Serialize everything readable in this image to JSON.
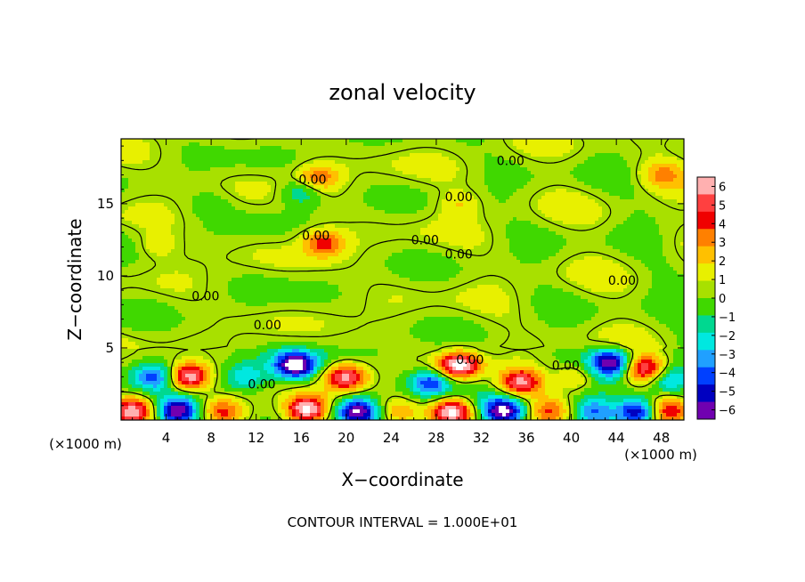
{
  "chart_data": {
    "type": "heatmap",
    "title": "zonal velocity",
    "xlabel": "X−coordinate",
    "ylabel": "Z−coordinate",
    "x_unit": "(×1000 m)",
    "y_unit": "(×1000 m)",
    "xlim": [
      0,
      50
    ],
    "ylim": [
      0,
      19.5
    ],
    "x_ticks": [
      "4",
      "8",
      "12",
      "16",
      "20",
      "24",
      "28",
      "32",
      "36",
      "40",
      "44",
      "48"
    ],
    "y_ticks": [
      "5",
      "10",
      "15"
    ],
    "colorbar": {
      "min": -6,
      "max": 6,
      "tick_labels": [
        "6",
        "5",
        "4",
        "3",
        "2",
        "1",
        "0",
        "−1",
        "−2",
        "−3",
        "−4",
        "−5",
        "−6"
      ],
      "colors": [
        "#ffb0b0",
        "#ff4040",
        "#f00000",
        "#ff8000",
        "#ffc000",
        "#e8f000",
        "#a8e000",
        "#40d800",
        "#00d890",
        "#00e8e0",
        "#20a0ff",
        "#0040ff",
        "#0000c0",
        "#7000b0"
      ]
    },
    "contour_label": "0.00",
    "contour_labels": [
      {
        "x": 34.6,
        "y": 18.0,
        "text": "0.00"
      },
      {
        "x": 17.0,
        "y": 16.7,
        "text": "0.00"
      },
      {
        "x": 30.0,
        "y": 15.5,
        "text": "0.00"
      },
      {
        "x": 17.3,
        "y": 12.8,
        "text": "0.00"
      },
      {
        "x": 27.0,
        "y": 12.5,
        "text": "0.00"
      },
      {
        "x": 30.0,
        "y": 11.5,
        "text": "0.00"
      },
      {
        "x": 44.5,
        "y": 9.7,
        "text": "0.00"
      },
      {
        "x": 7.5,
        "y": 8.6,
        "text": "0.00"
      },
      {
        "x": 13.0,
        "y": 6.6,
        "text": "0.00"
      },
      {
        "x": 31.0,
        "y": 4.2,
        "text": "0.00"
      },
      {
        "x": 39.5,
        "y": 3.8,
        "text": "0.00"
      },
      {
        "x": 12.5,
        "y": 2.5,
        "text": "0.00"
      }
    ],
    "features": [
      {
        "x": 6.0,
        "y": 3.0,
        "value": 6.5
      },
      {
        "x": 3.0,
        "y": 3.0,
        "value": -3.5
      },
      {
        "x": 15.5,
        "y": 3.8,
        "value": -6.5
      },
      {
        "x": 20.0,
        "y": 3.0,
        "value": 5.5
      },
      {
        "x": 11.0,
        "y": 3.0,
        "value": -2.5
      },
      {
        "x": 30.0,
        "y": 3.8,
        "value": 6.5
      },
      {
        "x": 27.5,
        "y": 2.6,
        "value": -4.5
      },
      {
        "x": 35.5,
        "y": 2.6,
        "value": 5.0
      },
      {
        "x": 43.5,
        "y": 4.0,
        "value": -6.0
      },
      {
        "x": 46.5,
        "y": 3.5,
        "value": 5.5
      },
      {
        "x": 48.5,
        "y": 2.8,
        "value": -3.0
      },
      {
        "x": 40.5,
        "y": 3.0,
        "value": 2.5
      },
      {
        "x": 1.0,
        "y": 0.6,
        "value": 5.0
      },
      {
        "x": 5.0,
        "y": 0.6,
        "value": -6.5
      },
      {
        "x": 9.0,
        "y": 0.6,
        "value": 3.5
      },
      {
        "x": 16.5,
        "y": 0.7,
        "value": 6.5
      },
      {
        "x": 21.0,
        "y": 0.6,
        "value": -6.0
      },
      {
        "x": 24.5,
        "y": 0.6,
        "value": 2.5
      },
      {
        "x": 29.5,
        "y": 0.6,
        "value": 6.5
      },
      {
        "x": 34.0,
        "y": 0.6,
        "value": -6.0
      },
      {
        "x": 38.0,
        "y": 0.6,
        "value": 3.0
      },
      {
        "x": 42.0,
        "y": 0.6,
        "value": -3.5
      },
      {
        "x": 46.0,
        "y": 0.6,
        "value": -6.0
      },
      {
        "x": 48.5,
        "y": 0.6,
        "value": 4.0
      },
      {
        "x": 18.0,
        "y": 12.3,
        "value": 3.5
      },
      {
        "x": 16.0,
        "y": 15.8,
        "value": -2.5
      },
      {
        "x": 17.5,
        "y": 16.8,
        "value": 3.0
      },
      {
        "x": 3.0,
        "y": 12.0,
        "value": 1.2
      },
      {
        "x": 48.0,
        "y": 17.0,
        "value": 2.0
      },
      {
        "x": 12.0,
        "y": 9.0,
        "value": -0.5
      },
      {
        "x": 30.0,
        "y": 15.0,
        "value": 1.5
      },
      {
        "x": 8.0,
        "y": 15.0,
        "value": -0.8
      }
    ],
    "grid": false
  },
  "footer": "CONTOUR INTERVAL = 1.000E+01"
}
